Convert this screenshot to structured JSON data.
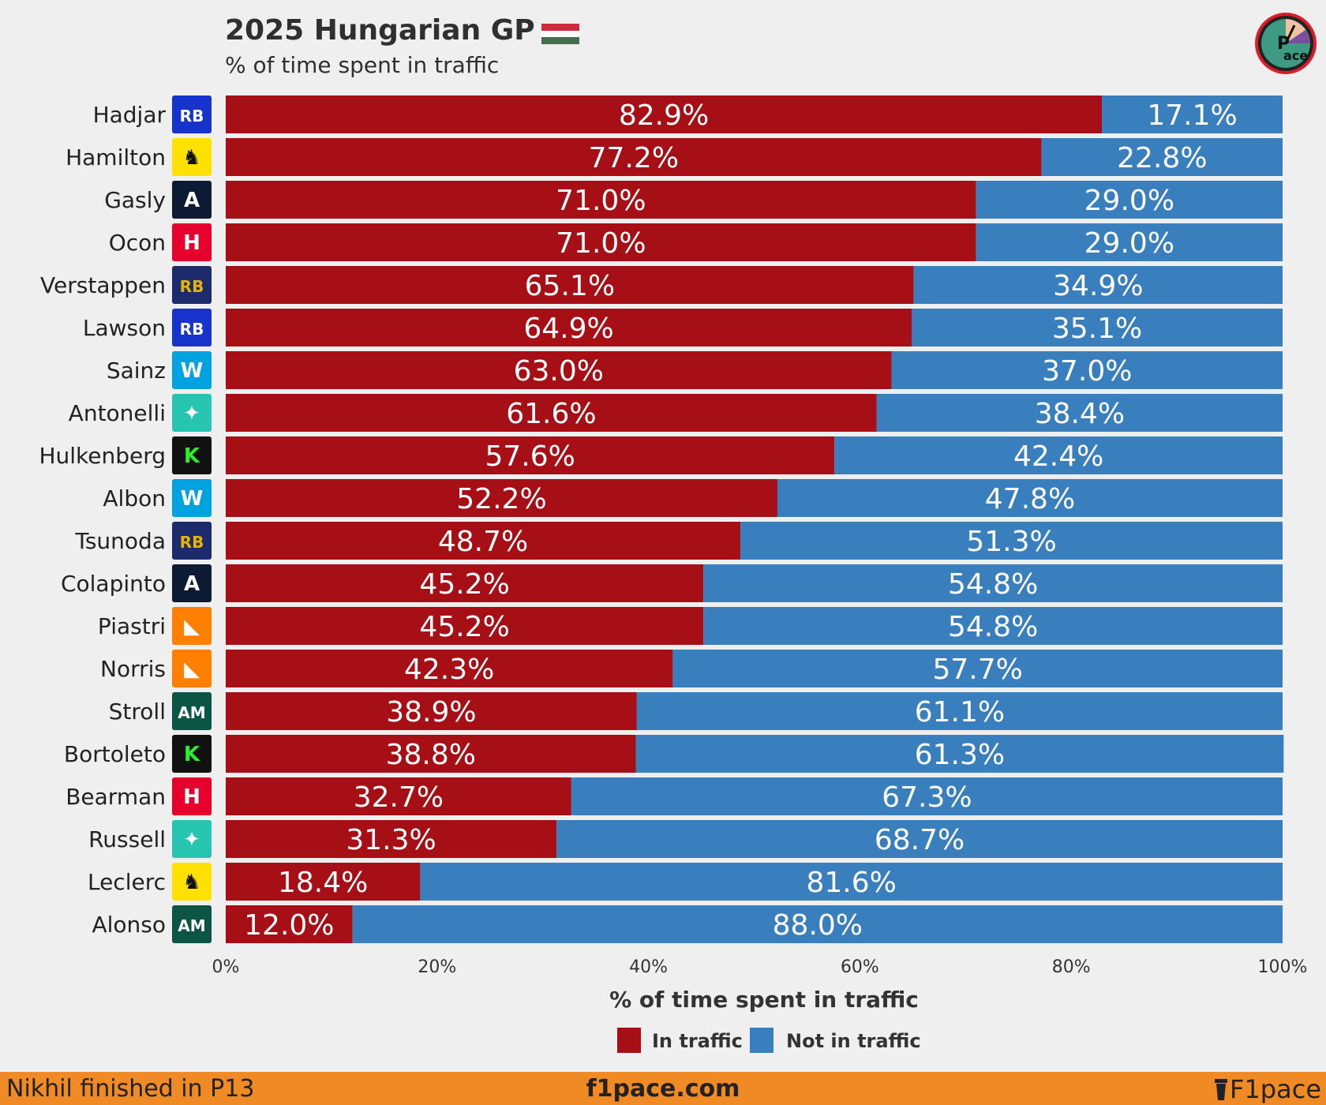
{
  "header": {
    "title": "2025 Hungarian GP",
    "subtitle": "% of time spent in traffic",
    "flag_colors": [
      "#cd2a3e",
      "#ffffff",
      "#436f4d"
    ]
  },
  "logo": {
    "text": "ace",
    "initial": "P"
  },
  "chart_data": {
    "type": "bar",
    "orientation": "horizontal",
    "stacked": true,
    "title": "2025 Hungarian GP",
    "subtitle": "% of time spent in traffic",
    "xlabel": "% of time spent in traffic",
    "ylabel": "",
    "xlim": [
      0,
      100
    ],
    "xticks": [
      "0%",
      "20%",
      "40%",
      "60%",
      "80%",
      "100%"
    ],
    "legend_position": "bottom",
    "categories": [
      "Hadjar",
      "Hamilton",
      "Gasly",
      "Ocon",
      "Verstappen",
      "Lawson",
      "Sainz",
      "Antonelli",
      "Hulkenberg",
      "Albon",
      "Tsunoda",
      "Colapinto",
      "Piastri",
      "Norris",
      "Stroll",
      "Bortoleto",
      "Bearman",
      "Russell",
      "Leclerc",
      "Alonso"
    ],
    "teams": [
      "racing-bulls",
      "ferrari",
      "alpine",
      "haas",
      "red-bull",
      "racing-bulls",
      "williams",
      "mercedes",
      "sauber",
      "williams",
      "red-bull",
      "alpine",
      "mclaren",
      "mclaren",
      "aston-martin",
      "sauber",
      "haas",
      "mercedes",
      "ferrari",
      "aston-martin"
    ],
    "series": [
      {
        "name": "In traffic",
        "color": "#a50f15",
        "values": [
          82.9,
          77.2,
          71.0,
          71.0,
          65.1,
          64.9,
          63.0,
          61.6,
          57.6,
          52.2,
          48.7,
          45.2,
          45.2,
          42.3,
          38.9,
          38.8,
          32.7,
          31.3,
          18.4,
          12.0
        ],
        "labels": [
          "82.9%",
          "77.2%",
          "71.0%",
          "71.0%",
          "65.1%",
          "64.9%",
          "63.0%",
          "61.6%",
          "57.6%",
          "52.2%",
          "48.7%",
          "45.2%",
          "45.2%",
          "42.3%",
          "38.9%",
          "38.8%",
          "32.7%",
          "31.3%",
          "18.4%",
          "12.0%"
        ]
      },
      {
        "name": "Not in traffic",
        "color": "#3a7fbd",
        "values": [
          17.1,
          22.8,
          29.0,
          29.0,
          34.9,
          35.1,
          37.0,
          38.4,
          42.4,
          47.8,
          51.3,
          54.8,
          54.8,
          57.7,
          61.1,
          61.3,
          67.3,
          68.7,
          81.6,
          88.0
        ],
        "labels": [
          "17.1%",
          "22.8%",
          "29.0%",
          "29.0%",
          "34.9%",
          "35.1%",
          "37.0%",
          "38.4%",
          "42.4%",
          "47.8%",
          "51.3%",
          "54.8%",
          "54.8%",
          "57.7%",
          "61.1%",
          "61.3%",
          "67.3%",
          "68.7%",
          "81.6%",
          "88.0%"
        ]
      }
    ]
  },
  "team_badges": {
    "racing-bulls": {
      "bg": "#1634cc",
      "fg": "#ffffff",
      "text": "RB"
    },
    "ferrari": {
      "bg": "#ffe100",
      "fg": "#111111",
      "text": "♞"
    },
    "alpine": {
      "bg": "#0c1a33",
      "fg": "#ffffff",
      "text": "A"
    },
    "haas": {
      "bg": "#e6002d",
      "fg": "#ffffff",
      "text": "H"
    },
    "red-bull": {
      "bg": "#1d2a6b",
      "fg": "#e8b400",
      "text": "RB"
    },
    "williams": {
      "bg": "#00a3e0",
      "fg": "#ffffff",
      "text": "W"
    },
    "mercedes": {
      "bg": "#27c4b0",
      "fg": "#ffffff",
      "text": "✦"
    },
    "sauber": {
      "bg": "#111111",
      "fg": "#2dee2d",
      "text": "K"
    },
    "mclaren": {
      "bg": "#ff8000",
      "fg": "#ffffff",
      "text": "◣"
    },
    "aston-martin": {
      "bg": "#0c5545",
      "fg": "#ffffff",
      "text": "AM"
    }
  },
  "footer": {
    "left": "Nikhil finished in P13",
    "center": "f1pace.com",
    "right": "F1pace"
  }
}
